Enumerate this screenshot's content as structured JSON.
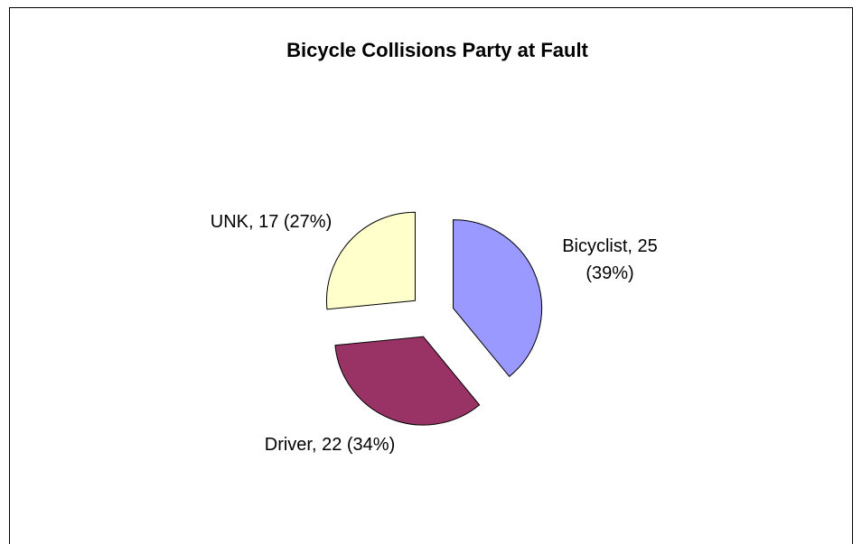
{
  "chart_data": {
    "type": "pie",
    "title": "Bicycle Collisions Party at Fault",
    "categories": [
      "Bicyclist",
      "Driver",
      "UNK"
    ],
    "values": [
      25,
      22,
      17
    ],
    "value_labels": [
      "Bicyclist, 25 (39%)",
      "Driver, 22 (34%)",
      "UNK, 17 (27%)"
    ],
    "colors": [
      "#9999ff",
      "#993366",
      "#ffffcc"
    ]
  }
}
